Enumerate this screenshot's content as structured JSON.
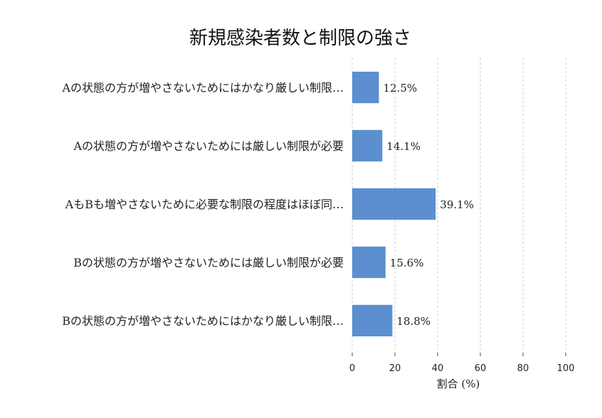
{
  "chart_data": {
    "type": "bar",
    "orientation": "horizontal",
    "title": "新規感染者数と制限の強さ",
    "xlabel": "割合 (%)",
    "ylabel": "",
    "xlim": [
      0,
      100
    ],
    "xticks": [
      0,
      20,
      40,
      60,
      80,
      100
    ],
    "grid": true,
    "bar_color": "#5b8fd0",
    "categories": [
      "Aの状態の方が増やさないためにはかなり厳しい制限…",
      "Aの状態の方が増やさないためには厳しい制限が必要",
      "AもBも増やさないために必要な制限の程度はほぼ同…",
      "Bの状態の方が増やさないためには厳しい制限が必要",
      "Bの状態の方が増やさないためにはかなり厳しい制限…"
    ],
    "values": [
      12.5,
      14.1,
      39.1,
      15.6,
      18.8
    ],
    "value_labels": [
      "12.5%",
      "14.1%",
      "39.1%",
      "15.6%",
      "18.8%"
    ]
  }
}
